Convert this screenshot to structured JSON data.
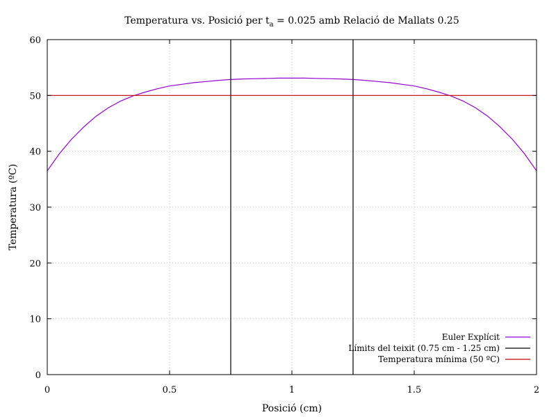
{
  "chart_data": {
    "type": "line",
    "title": {
      "prefix": "Temperatura vs. Posició per t",
      "subscript": "a",
      "suffix": " = 0.025 amb Relació de Mallats 0.25"
    },
    "xlabel": "Posició (cm)",
    "ylabel": "Temperatura (ºC)",
    "xlim": [
      0,
      2
    ],
    "ylim": [
      0,
      60
    ],
    "xticks": [
      0,
      0.5,
      1,
      1.5,
      2
    ],
    "xtick_labels": [
      "0",
      "0.5",
      "1",
      "1.5",
      "2"
    ],
    "yticks": [
      0,
      10,
      20,
      30,
      40,
      50,
      60
    ],
    "ytick_labels": [
      "0",
      "10",
      "20",
      "30",
      "40",
      "50",
      "60"
    ],
    "grid": true,
    "legend_position": "bottom-right",
    "series": [
      {
        "name": "Euler Explícit",
        "kind": "curve",
        "color": "#9400d3",
        "x": [
          0,
          0.05,
          0.1,
          0.15,
          0.2,
          0.25,
          0.3,
          0.35,
          0.4,
          0.45,
          0.5,
          0.55,
          0.6,
          0.65,
          0.7,
          0.75,
          0.8,
          0.85,
          0.9,
          0.95,
          1.0,
          1.05,
          1.1,
          1.15,
          1.2,
          1.25,
          1.3,
          1.35,
          1.4,
          1.45,
          1.5,
          1.55,
          1.6,
          1.65,
          1.7,
          1.75,
          1.8,
          1.85,
          1.9,
          1.95,
          2.0
        ],
        "y": [
          36.5,
          39.6,
          42.2,
          44.4,
          46.3,
          47.8,
          49.0,
          49.9,
          50.6,
          51.2,
          51.7,
          52.0,
          52.3,
          52.5,
          52.7,
          52.85,
          52.95,
          53.0,
          53.05,
          53.1,
          53.1,
          53.1,
          53.05,
          53.0,
          52.95,
          52.85,
          52.7,
          52.5,
          52.3,
          52.0,
          51.7,
          51.2,
          50.6,
          49.9,
          49.0,
          47.8,
          46.3,
          44.4,
          42.2,
          39.6,
          36.5
        ]
      },
      {
        "name": "Límits del teixit (0.75 cm - 1.25 cm)",
        "kind": "vertical-lines",
        "color": "#000000",
        "x": [
          0.75,
          1.25
        ]
      },
      {
        "name": "Temperatura mínima (50 ºC)",
        "kind": "horizontal-line",
        "color": "#c00000",
        "y": 50
      }
    ]
  }
}
